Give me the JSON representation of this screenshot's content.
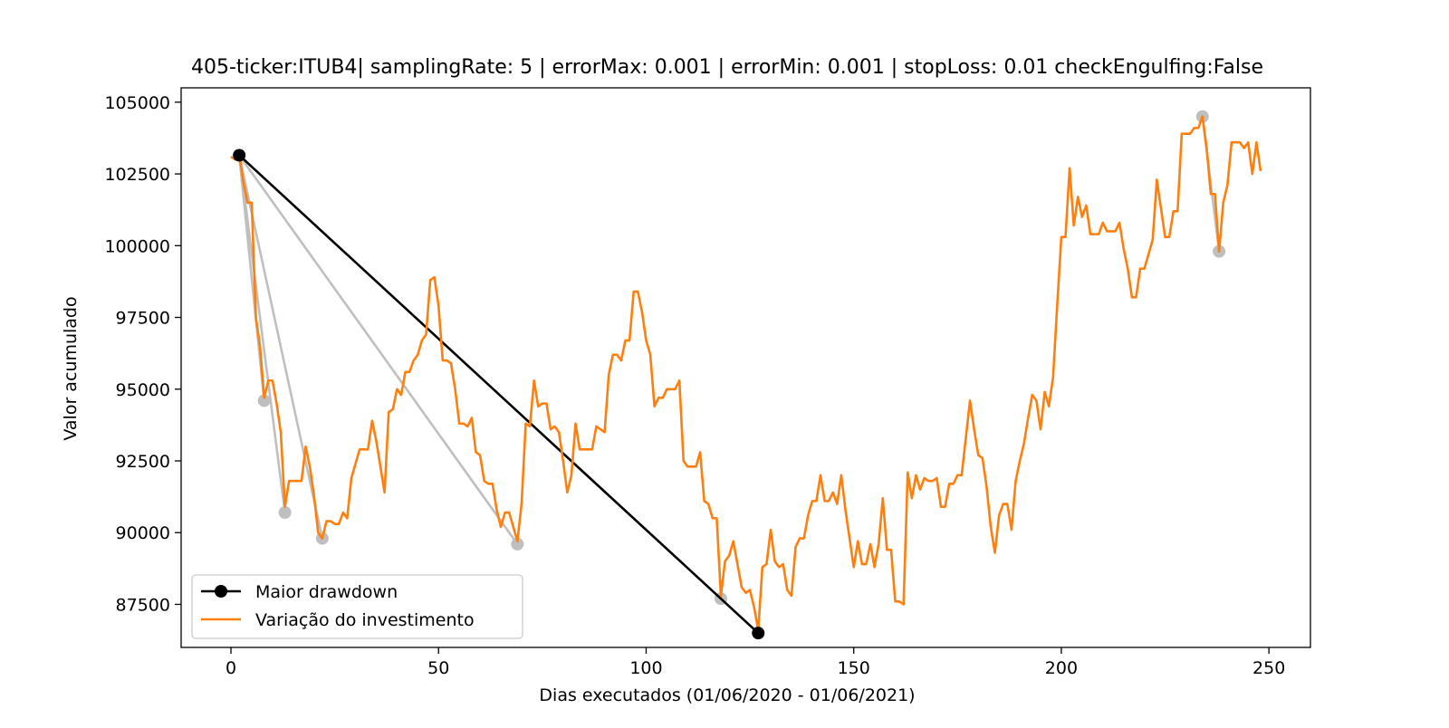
{
  "chart_data": {
    "type": "line",
    "title": "405-ticker:ITUB4| samplingRate: 5 | errorMax: 0.001 | errorMin: 0.001 | stopLoss: 0.01 checkEngulfing:False",
    "xlabel": "Dias executados (01/06/2020 - 01/06/2021)",
    "ylabel": "Valor acumulado",
    "xlim": [
      -12,
      260
    ],
    "ylim": [
      86000,
      105500
    ],
    "xticks": [
      0,
      50,
      100,
      150,
      200,
      250
    ],
    "yticks": [
      87500,
      90000,
      92500,
      95000,
      97500,
      100000,
      102500,
      105000
    ],
    "xtick_labels": [
      "0",
      "50",
      "100",
      "150",
      "200",
      "250"
    ],
    "ytick_labels": [
      "87500",
      "90000",
      "92500",
      "95000",
      "97500",
      "100000",
      "102500",
      "105000"
    ],
    "grid": false,
    "legend_position": "lower-left",
    "colors": {
      "drawdown": "#000000",
      "investment": "#ff7f0e",
      "drawdown_minor": "#bfbfbf"
    },
    "series": [
      {
        "name": "Variação do investimento",
        "x": [
          0,
          1,
          2,
          3,
          4,
          5,
          6,
          7,
          8,
          9,
          10,
          11,
          12,
          13,
          14,
          15,
          16,
          17,
          18,
          19,
          20,
          21,
          22,
          23,
          24,
          25,
          26,
          27,
          28,
          29,
          30,
          31,
          32,
          33,
          34,
          35,
          36,
          37,
          38,
          39,
          40,
          41,
          42,
          43,
          44,
          45,
          46,
          47,
          48,
          49,
          50,
          51,
          52,
          53,
          54,
          55,
          56,
          57,
          58,
          59,
          60,
          61,
          62,
          63,
          64,
          65,
          66,
          67,
          68,
          69,
          70,
          71,
          72,
          73,
          74,
          75,
          76,
          77,
          78,
          79,
          80,
          81,
          82,
          83,
          84,
          85,
          86,
          87,
          88,
          89,
          90,
          91,
          92,
          93,
          94,
          95,
          96,
          97,
          98,
          99,
          100,
          101,
          102,
          103,
          104,
          105,
          106,
          107,
          108,
          109,
          110,
          111,
          112,
          113,
          114,
          115,
          116,
          117,
          118,
          119,
          120,
          121,
          122,
          123,
          124,
          125,
          126,
          127,
          128,
          129,
          130,
          131,
          132,
          133,
          134,
          135,
          136,
          137,
          138,
          139,
          140,
          141,
          142,
          143,
          144,
          145,
          146,
          147,
          148,
          149,
          150,
          151,
          152,
          153,
          154,
          155,
          156,
          157,
          158,
          159,
          160,
          161,
          162,
          163,
          164,
          165,
          166,
          167,
          168,
          169,
          170,
          171,
          172,
          173,
          174,
          175,
          176,
          177,
          178,
          179,
          180,
          181,
          182,
          183,
          184,
          185,
          186,
          187,
          188,
          189,
          190,
          191,
          192,
          193,
          194,
          195,
          196,
          197,
          198,
          199,
          200,
          201,
          202,
          203,
          204,
          205,
          206,
          207,
          208,
          209,
          210,
          211,
          212,
          213,
          214,
          215,
          216,
          217,
          218,
          219,
          220,
          221,
          222,
          223,
          224,
          225,
          226,
          227,
          228,
          229,
          230,
          231,
          232,
          233,
          234,
          235,
          236,
          237,
          238,
          239,
          240,
          241,
          242,
          243,
          244,
          245,
          246,
          247,
          248
        ],
        "values": [
          103100,
          103000,
          103200,
          102200,
          101500,
          101500,
          97500,
          96500,
          94700,
          95300,
          95300,
          94500,
          93500,
          90900,
          91800,
          91800,
          91800,
          91800,
          93000,
          92300,
          91300,
          90000,
          89800,
          90400,
          90400,
          90300,
          90300,
          90700,
          90500,
          91900,
          92400,
          92900,
          92900,
          92900,
          93900,
          93200,
          92300,
          91400,
          94200,
          94300,
          95000,
          94800,
          95600,
          95600,
          96000,
          96200,
          96700,
          96900,
          98800,
          98900,
          97900,
          96000,
          96000,
          95900,
          95000,
          93800,
          93800,
          93700,
          94000,
          92800,
          92700,
          91800,
          91700,
          91700,
          90800,
          90200,
          90700,
          90700,
          90200,
          89700,
          91000,
          93800,
          93700,
          95300,
          94400,
          94500,
          94500,
          93600,
          93700,
          93500,
          92500,
          91400,
          92000,
          93800,
          92900,
          92900,
          92900,
          92900,
          93700,
          93600,
          93500,
          95500,
          96200,
          96200,
          96000,
          96700,
          96700,
          98400,
          98400,
          97700,
          96700,
          96200,
          94400,
          94700,
          94700,
          95000,
          95000,
          95000,
          95300,
          92500,
          92300,
          92300,
          92300,
          92800,
          91100,
          91000,
          90500,
          90500,
          87800,
          89000,
          89200,
          89700,
          88900,
          88100,
          87900,
          88000,
          87400,
          86600,
          88800,
          88900,
          90100,
          89000,
          88800,
          88900,
          88000,
          87800,
          89500,
          89800,
          89800,
          90600,
          91100,
          91100,
          92000,
          91100,
          91100,
          91400,
          91000,
          92000,
          90800,
          89800,
          88800,
          89700,
          88900,
          88900,
          89600,
          88800,
          89600,
          91200,
          89400,
          89400,
          87600,
          87600,
          87500,
          92100,
          91200,
          92000,
          91500,
          91900,
          91800,
          91800,
          91900,
          90900,
          90900,
          91700,
          91700,
          92000,
          92000,
          93300,
          94600,
          93600,
          92700,
          92600,
          91600,
          90200,
          89300,
          90600,
          91000,
          91000,
          90100,
          91800,
          92500,
          93100,
          94000,
          94800,
          94600,
          93600,
          94900,
          94400,
          95400,
          97900,
          100300,
          100300,
          102700,
          100700,
          101700,
          101000,
          101400,
          100400,
          100400,
          100400,
          100800,
          100500,
          100500,
          100500,
          100800,
          99900,
          99200,
          98200,
          98200,
          99200,
          99200,
          99700,
          100200,
          102300,
          101300,
          100300,
          100300,
          101200,
          101200,
          103900,
          103900,
          103900,
          104100,
          104100,
          104500,
          103400,
          101800,
          101800,
          99800,
          101500,
          102100,
          103600,
          103600,
          103600,
          103400,
          103600,
          102500,
          103600,
          102600
        ]
      },
      {
        "name": "Maior drawdown",
        "x": [
          2,
          127
        ],
        "values": [
          103150,
          86500
        ]
      }
    ],
    "minor_drawdowns": [
      {
        "x": [
          2,
          8
        ],
        "values": [
          103150,
          94600
        ]
      },
      {
        "x": [
          2,
          13
        ],
        "values": [
          103150,
          90700
        ]
      },
      {
        "x": [
          2,
          22
        ],
        "values": [
          103150,
          89800
        ]
      },
      {
        "x": [
          2,
          69
        ],
        "values": [
          103150,
          89600
        ]
      },
      {
        "x": [
          234,
          238
        ],
        "values": [
          104500,
          99800
        ]
      }
    ],
    "extra_grey_points": [
      {
        "x": 118,
        "value": 87700
      }
    ]
  }
}
